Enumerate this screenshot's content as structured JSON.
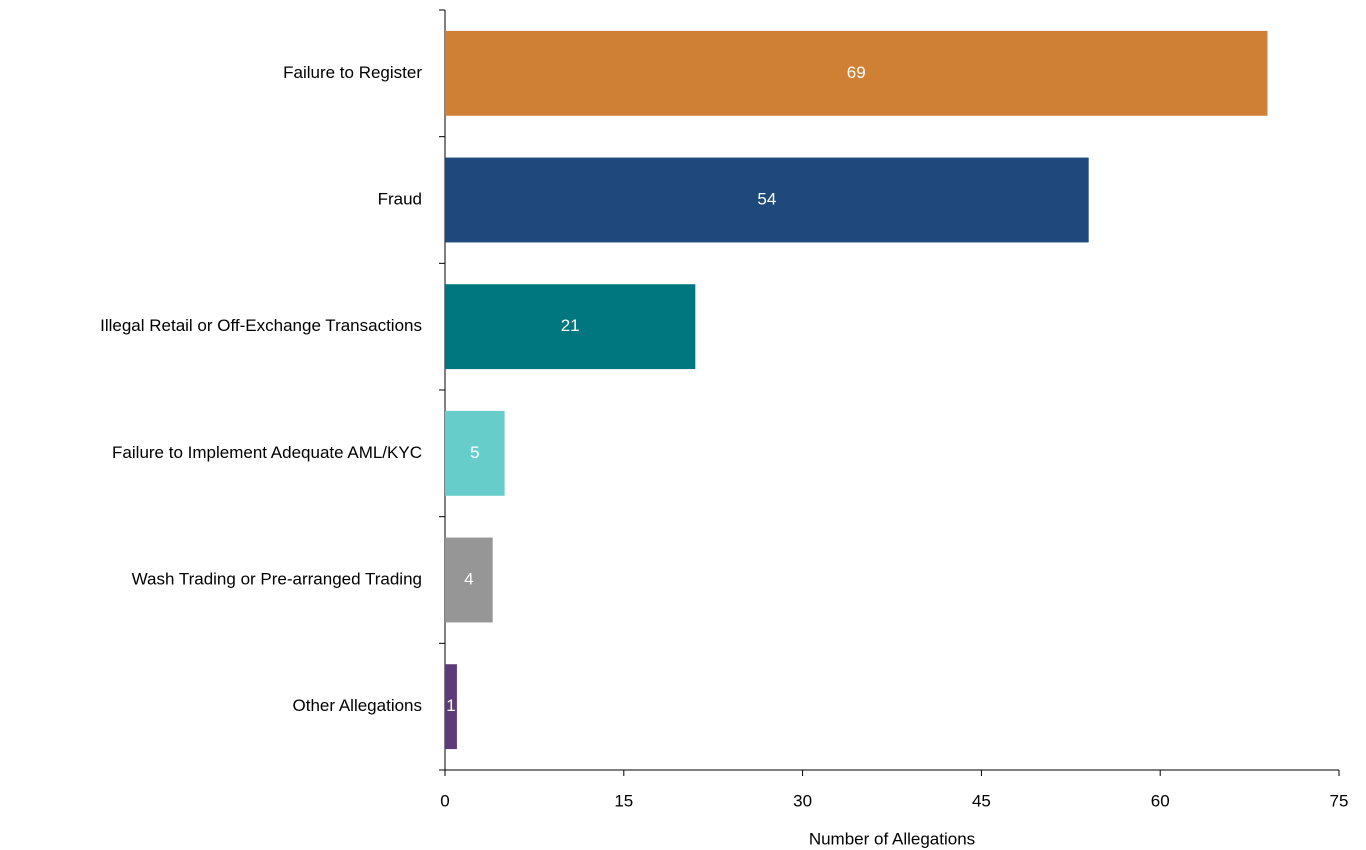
{
  "chart_data": {
    "type": "bar",
    "orientation": "horizontal",
    "categories": [
      "Failure to Register",
      "Fraud",
      "Illegal Retail or Off-Exchange Transactions",
      "Failure to Implement Adequate AML/KYC",
      "Wash Trading or Pre-arranged Trading",
      "Other Allegations"
    ],
    "values": [
      69,
      54,
      21,
      5,
      4,
      1
    ],
    "colors": [
      "#d08035",
      "#1f497d",
      "#00777f",
      "#66cdca",
      "#969696",
      "#5e3a78"
    ],
    "xlabel": "Number of Allegations",
    "xlim": [
      0,
      75
    ],
    "xticks": [
      0,
      15,
      30,
      45,
      60,
      75
    ],
    "grid": false
  }
}
